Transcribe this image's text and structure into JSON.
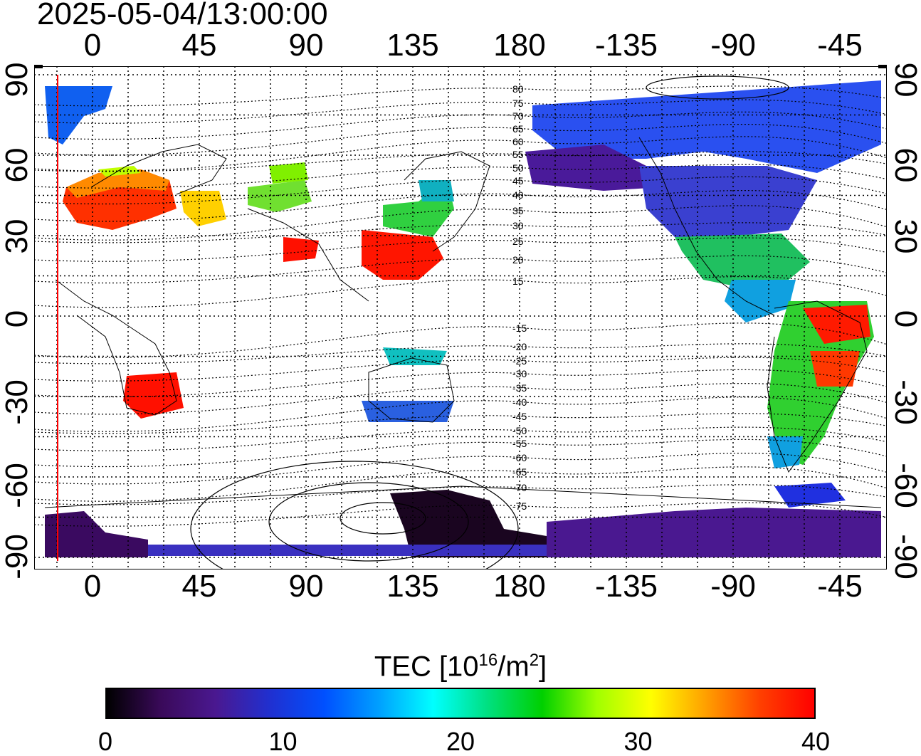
{
  "timestamp": "2025-05-04/13:00:00",
  "top_lon_labels": [
    "0",
    "45",
    "90",
    "135",
    "180",
    "-135",
    "-90",
    "-45"
  ],
  "bottom_lon_labels": [
    "0",
    "45",
    "90",
    "135",
    "180",
    "-135",
    "-90",
    "-45"
  ],
  "left_lat_labels": [
    "90",
    "60",
    "30",
    "0",
    "-30",
    "-60",
    "-90"
  ],
  "right_lat_labels": [
    "90",
    "60",
    "30",
    "0",
    "-30",
    "-60",
    "-90"
  ],
  "contour_labels": [
    "80",
    "75",
    "70",
    "65",
    "60",
    "55",
    "50",
    "45",
    "40",
    "35",
    "30",
    "25",
    "20",
    "15",
    "-15",
    "-20",
    "-25",
    "-30",
    "-35",
    "-40",
    "-45",
    "-50",
    "-55",
    "-60",
    "-65",
    "-70",
    "-75"
  ],
  "colorbar": {
    "title_prefix": "TEC  [10",
    "title_exp": "16",
    "title_mid": "/m",
    "title_exp2": "2",
    "title_suffix": "]",
    "min": 0,
    "max": 40,
    "tick_labels": [
      "0",
      "10",
      "20",
      "30",
      "40"
    ],
    "tick_values": [
      0,
      10,
      20,
      30,
      40
    ],
    "colors": [
      "#000000",
      "#3a0a5a",
      "#4a1890",
      "#2030d0",
      "#0050ff",
      "#00a0ff",
      "#00ffff",
      "#00e080",
      "#00d000",
      "#a0ff00",
      "#ffff00",
      "#ffa000",
      "#ff4000",
      "#ff0000"
    ]
  },
  "map": {
    "lon_center": 180,
    "highlight_meridian_color": "#ff0000",
    "regions": [
      {
        "name": "north-america-high",
        "color": "#2040e0"
      },
      {
        "name": "north-america-mid",
        "color": "#3a28c0"
      },
      {
        "name": "east-asia",
        "color": "#ff1a00"
      },
      {
        "name": "europe",
        "color": "#ff6a00"
      },
      {
        "name": "south-america",
        "color": "#40d040"
      },
      {
        "name": "antarctica",
        "color": "#2a0a4a"
      }
    ]
  }
}
